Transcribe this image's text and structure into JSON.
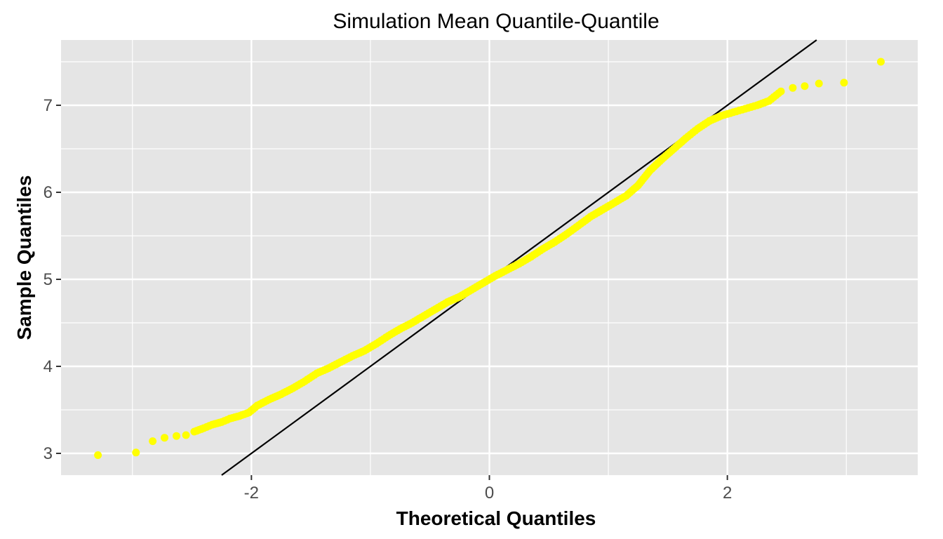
{
  "chart_data": {
    "type": "scatter",
    "title": "Simulation Mean Quantile-Quantile",
    "xlabel": "Theoretical Quantiles",
    "ylabel": "Sample Quantiles",
    "xlim": [
      -3.6,
      3.6
    ],
    "ylim": [
      2.75,
      7.75
    ],
    "x_ticks": [
      -2,
      0,
      2
    ],
    "x_tick_labels": [
      "-2",
      "0",
      "2"
    ],
    "y_ticks": [
      3,
      4,
      5,
      6,
      7
    ],
    "y_tick_labels": [
      "3",
      "4",
      "5",
      "6",
      "7"
    ],
    "grid": true,
    "legend": "none",
    "point_color": "#ffff00",
    "panel_color": "#e5e5e5",
    "reference_line": {
      "intercept": 5,
      "slope": 1,
      "color": "#000000"
    },
    "series": [
      {
        "points": [
          [
            -3.29,
            2.98
          ],
          [
            -2.97,
            3.01
          ],
          [
            -2.83,
            3.14
          ],
          [
            -2.73,
            3.18
          ],
          [
            -2.63,
            3.2
          ],
          [
            -2.55,
            3.21
          ],
          [
            -2.48,
            3.25
          ],
          [
            -2.4,
            3.29
          ],
          [
            -2.33,
            3.33
          ],
          [
            -2.25,
            3.36
          ],
          [
            -2.18,
            3.4
          ],
          [
            -2.1,
            3.43
          ],
          [
            -2.02,
            3.47
          ],
          [
            -1.95,
            3.55
          ],
          [
            -1.85,
            3.62
          ],
          [
            -1.75,
            3.68
          ],
          [
            -1.65,
            3.75
          ],
          [
            -1.55,
            3.83
          ],
          [
            -1.45,
            3.92
          ],
          [
            -1.35,
            3.98
          ],
          [
            -1.25,
            4.05
          ],
          [
            -1.15,
            4.12
          ],
          [
            -1.05,
            4.18
          ],
          [
            -0.95,
            4.26
          ],
          [
            -0.85,
            4.35
          ],
          [
            -0.75,
            4.43
          ],
          [
            -0.65,
            4.5
          ],
          [
            -0.55,
            4.58
          ],
          [
            -0.45,
            4.66
          ],
          [
            -0.35,
            4.74
          ],
          [
            -0.25,
            4.8
          ],
          [
            -0.15,
            4.88
          ],
          [
            -0.05,
            4.96
          ],
          [
            0.05,
            5.04
          ],
          [
            0.15,
            5.11
          ],
          [
            0.25,
            5.18
          ],
          [
            0.35,
            5.26
          ],
          [
            0.45,
            5.35
          ],
          [
            0.55,
            5.43
          ],
          [
            0.65,
            5.52
          ],
          [
            0.75,
            5.62
          ],
          [
            0.85,
            5.72
          ],
          [
            0.95,
            5.8
          ],
          [
            1.05,
            5.88
          ],
          [
            1.15,
            5.96
          ],
          [
            1.25,
            6.08
          ],
          [
            1.35,
            6.25
          ],
          [
            1.45,
            6.38
          ],
          [
            1.55,
            6.5
          ],
          [
            1.65,
            6.62
          ],
          [
            1.75,
            6.73
          ],
          [
            1.85,
            6.82
          ],
          [
            1.95,
            6.88
          ],
          [
            2.05,
            6.92
          ],
          [
            2.15,
            6.96
          ],
          [
            2.25,
            7.0
          ],
          [
            2.35,
            7.05
          ],
          [
            2.45,
            7.16
          ],
          [
            2.55,
            7.2
          ],
          [
            2.65,
            7.22
          ],
          [
            2.77,
            7.25
          ],
          [
            2.98,
            7.26
          ],
          [
            3.29,
            7.5
          ]
        ]
      }
    ]
  }
}
